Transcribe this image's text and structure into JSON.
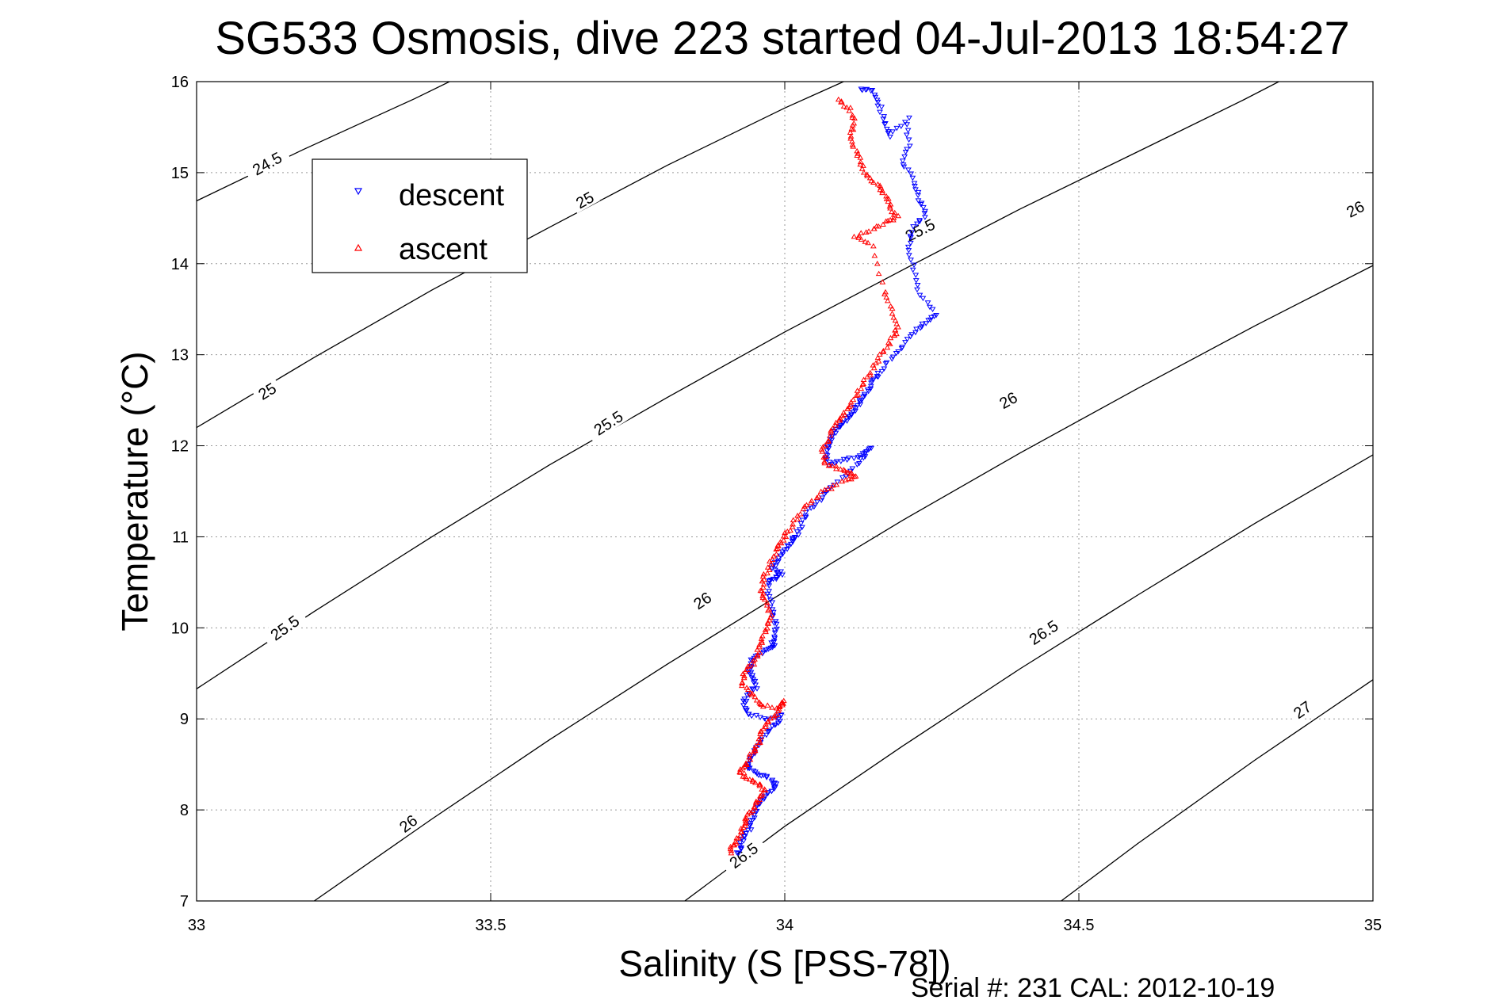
{
  "chart_data": {
    "type": "scatter",
    "title": "SG533 Osmosis, dive 223 started 04-Jul-2013 18:54:27",
    "xlabel": "Salinity (S [PSS-78])",
    "ylabel": "Temperature (°C)",
    "xlim": [
      33,
      35
    ],
    "ylim": [
      7,
      16
    ],
    "x_ticks": [
      33,
      33.5,
      34,
      34.5,
      35
    ],
    "x_tick_labels": [
      "33",
      "33.5",
      "34",
      "34.5",
      "35"
    ],
    "y_ticks": [
      7,
      8,
      9,
      10,
      11,
      12,
      13,
      14,
      15,
      16
    ],
    "y_tick_labels": [
      "7",
      "8",
      "9",
      "10",
      "11",
      "12",
      "13",
      "14",
      "15",
      "16"
    ],
    "grid": true,
    "legend_placement": "top-left",
    "footer": "Serial #: 231  CAL: 2012-10-19",
    "contours": [
      {
        "label": "24.5",
        "points": [
          [
            33.0,
            14.69
          ],
          [
            33.18,
            15.25
          ],
          [
            33.37,
            15.81
          ],
          [
            33.43,
            16.0
          ]
        ]
      },
      {
        "label": "25",
        "points": [
          [
            33.0,
            12.2
          ],
          [
            33.2,
            12.97
          ],
          [
            33.4,
            13.71
          ],
          [
            33.6,
            14.4
          ],
          [
            33.8,
            15.08
          ],
          [
            34.0,
            15.71
          ],
          [
            34.1,
            16.0
          ]
        ]
      },
      {
        "label": "25.5",
        "points": [
          [
            33.0,
            9.33
          ],
          [
            33.2,
            10.18
          ],
          [
            33.4,
            11.0
          ],
          [
            33.6,
            11.79
          ],
          [
            33.8,
            12.53
          ],
          [
            34.0,
            13.25
          ],
          [
            34.2,
            13.93
          ],
          [
            34.4,
            14.6
          ],
          [
            34.6,
            15.23
          ],
          [
            34.78,
            15.8
          ],
          [
            34.84,
            16.0
          ]
        ]
      },
      {
        "label": "26",
        "points": [
          [
            33.2,
            7.0
          ],
          [
            33.4,
            7.9
          ],
          [
            33.6,
            8.77
          ],
          [
            33.8,
            9.6
          ],
          [
            34.0,
            10.4
          ],
          [
            34.2,
            11.18
          ],
          [
            34.4,
            11.92
          ],
          [
            34.6,
            12.63
          ],
          [
            34.8,
            13.32
          ],
          [
            35.0,
            13.98
          ]
        ]
      },
      {
        "label": "26.5",
        "points": [
          [
            33.83,
            7.0
          ],
          [
            34.0,
            7.82
          ],
          [
            34.2,
            8.7
          ],
          [
            34.4,
            9.55
          ],
          [
            34.6,
            10.36
          ],
          [
            34.8,
            11.15
          ],
          [
            35.0,
            11.9
          ]
        ]
      },
      {
        "label": "27",
        "points": [
          [
            34.47,
            7.0
          ],
          [
            34.6,
            7.63
          ],
          [
            34.8,
            8.55
          ],
          [
            35.0,
            9.43
          ]
        ]
      }
    ],
    "contour_labels": [
      {
        "text": "24.5",
        "x": 33.12,
        "y": 15.1,
        "angle": -29
      },
      {
        "text": "25",
        "x": 33.66,
        "y": 14.7,
        "angle": -29
      },
      {
        "text": "25",
        "x": 33.12,
        "y": 12.6,
        "angle": -31
      },
      {
        "text": "25.5",
        "x": 33.7,
        "y": 12.25,
        "angle": -33
      },
      {
        "text": "25.5",
        "x": 33.15,
        "y": 10.0,
        "angle": -35
      },
      {
        "text": "25.5",
        "x": 34.23,
        "y": 14.37,
        "angle": -27
      },
      {
        "text": "26",
        "x": 34.97,
        "y": 14.6,
        "angle": -27
      },
      {
        "text": "26",
        "x": 34.38,
        "y": 12.5,
        "angle": -29
      },
      {
        "text": "26",
        "x": 33.86,
        "y": 10.3,
        "angle": -33
      },
      {
        "text": "26",
        "x": 33.36,
        "y": 7.85,
        "angle": -37
      },
      {
        "text": "26.5",
        "x": 34.44,
        "y": 9.95,
        "angle": -33
      },
      {
        "text": "26.5",
        "x": 33.93,
        "y": 7.5,
        "angle": -37
      },
      {
        "text": "27",
        "x": 34.88,
        "y": 9.1,
        "angle": -35
      }
    ],
    "series": [
      {
        "name": "descent",
        "color": "#0000ff",
        "marker": "triangle-down",
        "path": [
          [
            34.13,
            15.92
          ],
          [
            34.15,
            15.9
          ],
          [
            34.16,
            15.75
          ],
          [
            34.17,
            15.55
          ],
          [
            34.18,
            15.4
          ],
          [
            34.21,
            15.6
          ],
          [
            34.21,
            15.3
          ],
          [
            34.2,
            15.1
          ],
          [
            34.22,
            14.9
          ],
          [
            34.23,
            14.7
          ],
          [
            34.24,
            14.55
          ],
          [
            34.22,
            14.4
          ],
          [
            34.21,
            14.2
          ],
          [
            34.22,
            13.95
          ],
          [
            34.23,
            13.65
          ],
          [
            34.26,
            13.45
          ],
          [
            34.24,
            13.35
          ],
          [
            34.22,
            13.25
          ],
          [
            34.2,
            13.1
          ],
          [
            34.18,
            12.95
          ],
          [
            34.16,
            12.8
          ],
          [
            34.15,
            12.7
          ],
          [
            34.14,
            12.6
          ],
          [
            34.13,
            12.5
          ],
          [
            34.12,
            12.42
          ],
          [
            34.11,
            12.32
          ],
          [
            34.1,
            12.25
          ],
          [
            34.09,
            12.2
          ],
          [
            34.08,
            12.1
          ],
          [
            34.075,
            12.0
          ],
          [
            34.07,
            11.9
          ],
          [
            34.075,
            11.8
          ],
          [
            34.1,
            11.85
          ],
          [
            34.13,
            11.9
          ],
          [
            34.145,
            11.97
          ],
          [
            34.13,
            11.85
          ],
          [
            34.11,
            11.7
          ],
          [
            34.08,
            11.55
          ],
          [
            34.06,
            11.4
          ],
          [
            34.04,
            11.3
          ],
          [
            34.03,
            11.15
          ],
          [
            34.02,
            11.0
          ],
          [
            34.01,
            10.95
          ],
          [
            34.0,
            10.85
          ],
          [
            33.99,
            10.75
          ],
          [
            33.98,
            10.65
          ],
          [
            33.995,
            10.6
          ],
          [
            33.985,
            10.55
          ],
          [
            33.97,
            10.5
          ],
          [
            33.975,
            10.3
          ],
          [
            33.98,
            10.15
          ],
          [
            33.985,
            10.0
          ],
          [
            33.98,
            9.85
          ],
          [
            33.98,
            9.8
          ],
          [
            33.965,
            9.75
          ],
          [
            33.945,
            9.65
          ],
          [
            33.94,
            9.55
          ],
          [
            33.945,
            9.45
          ],
          [
            33.95,
            9.35
          ],
          [
            33.935,
            9.25
          ],
          [
            33.93,
            9.15
          ],
          [
            33.94,
            9.05
          ],
          [
            33.97,
            9.0
          ],
          [
            33.995,
            9.05
          ],
          [
            33.985,
            8.95
          ],
          [
            33.97,
            8.85
          ],
          [
            33.955,
            8.7
          ],
          [
            33.945,
            8.6
          ],
          [
            33.935,
            8.5
          ],
          [
            33.94,
            8.45
          ],
          [
            33.96,
            8.38
          ],
          [
            33.98,
            8.33
          ],
          [
            33.985,
            8.25
          ],
          [
            33.97,
            8.18
          ],
          [
            33.96,
            8.1
          ],
          [
            33.95,
            8.0
          ],
          [
            33.945,
            7.9
          ],
          [
            33.94,
            7.8
          ],
          [
            33.93,
            7.7
          ],
          [
            33.925,
            7.6
          ],
          [
            33.92,
            7.5
          ]
        ]
      },
      {
        "name": "ascent",
        "color": "#ff0000",
        "marker": "triangle-up",
        "path": [
          [
            34.09,
            15.8
          ],
          [
            34.11,
            15.7
          ],
          [
            34.12,
            15.55
          ],
          [
            34.11,
            15.4
          ],
          [
            34.12,
            15.25
          ],
          [
            34.13,
            15.1
          ],
          [
            34.14,
            14.95
          ],
          [
            34.16,
            14.85
          ],
          [
            34.17,
            14.75
          ],
          [
            34.18,
            14.62
          ],
          [
            34.19,
            14.52
          ],
          [
            34.17,
            14.45
          ],
          [
            34.15,
            14.38
          ],
          [
            34.12,
            14.3
          ],
          [
            34.15,
            14.2
          ],
          [
            34.17,
            13.7
          ],
          [
            34.18,
            13.5
          ],
          [
            34.19,
            13.3
          ],
          [
            34.185,
            13.2
          ],
          [
            34.17,
            13.05
          ],
          [
            34.155,
            12.9
          ],
          [
            34.14,
            12.75
          ],
          [
            34.125,
            12.6
          ],
          [
            34.11,
            12.45
          ],
          [
            34.1,
            12.35
          ],
          [
            34.09,
            12.25
          ],
          [
            34.075,
            12.1
          ],
          [
            34.065,
            11.95
          ],
          [
            34.07,
            11.8
          ],
          [
            34.09,
            11.75
          ],
          [
            34.11,
            11.7
          ],
          [
            34.12,
            11.65
          ],
          [
            34.09,
            11.58
          ],
          [
            34.06,
            11.48
          ],
          [
            34.04,
            11.35
          ],
          [
            34.02,
            11.2
          ],
          [
            34.005,
            11.05
          ],
          [
            33.995,
            10.95
          ],
          [
            33.985,
            10.85
          ],
          [
            33.975,
            10.7
          ],
          [
            33.965,
            10.55
          ],
          [
            33.96,
            10.42
          ],
          [
            33.965,
            10.3
          ],
          [
            33.975,
            10.15
          ],
          [
            33.97,
            10.0
          ],
          [
            33.96,
            9.85
          ],
          [
            33.955,
            9.72
          ],
          [
            33.945,
            9.6
          ],
          [
            33.93,
            9.5
          ],
          [
            33.93,
            9.35
          ],
          [
            33.945,
            9.25
          ],
          [
            33.96,
            9.15
          ],
          [
            33.99,
            9.12
          ],
          [
            34.0,
            9.2
          ],
          [
            33.985,
            9.05
          ],
          [
            33.97,
            8.95
          ],
          [
            33.96,
            8.85
          ],
          [
            33.955,
            8.72
          ],
          [
            33.945,
            8.62
          ],
          [
            33.935,
            8.5
          ],
          [
            33.925,
            8.42
          ],
          [
            33.935,
            8.35
          ],
          [
            33.955,
            8.28
          ],
          [
            33.965,
            8.2
          ],
          [
            33.955,
            8.1
          ],
          [
            33.945,
            8.0
          ],
          [
            33.935,
            7.9
          ],
          [
            33.93,
            7.8
          ],
          [
            33.92,
            7.7
          ],
          [
            33.912,
            7.6
          ],
          [
            33.905,
            7.5
          ]
        ]
      }
    ]
  },
  "legend": {
    "entries": [
      {
        "label": "descent",
        "color": "#0000ff"
      },
      {
        "label": "ascent",
        "color": "#ff0000"
      }
    ]
  }
}
